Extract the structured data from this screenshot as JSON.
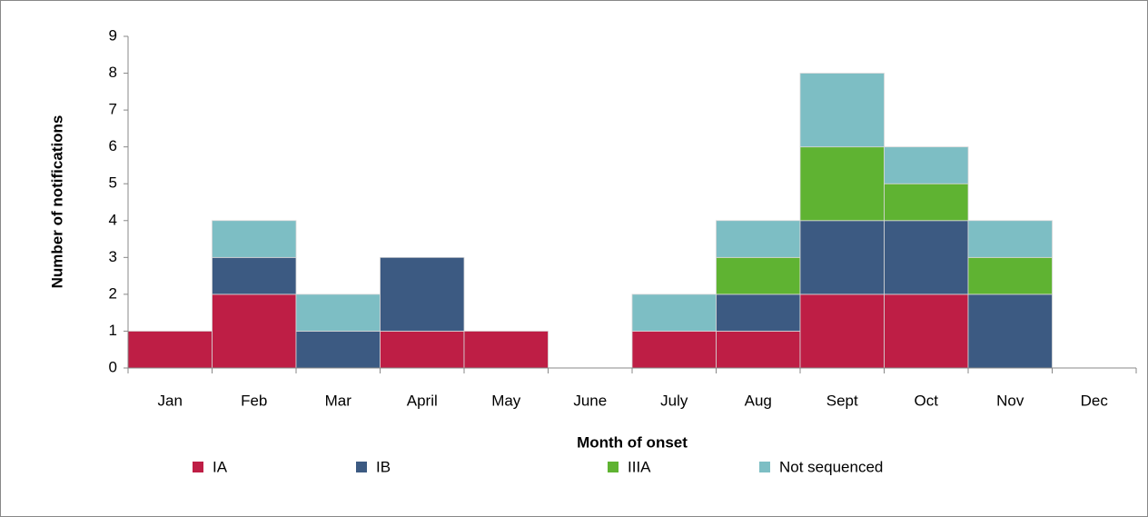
{
  "chart_data": {
    "type": "stacked_bar",
    "categories": [
      "Jan",
      "Feb",
      "Mar",
      "April",
      "May",
      "June",
      "July",
      "Aug",
      "Sept",
      "Oct",
      "Nov",
      "Dec"
    ],
    "series": [
      {
        "name": "IA",
        "color": "#be1e45",
        "values": [
          1,
          2,
          0,
          1,
          1,
          0,
          1,
          1,
          2,
          2,
          0,
          0
        ]
      },
      {
        "name": "IB",
        "color": "#3c5a82",
        "values": [
          0,
          1,
          1,
          2,
          0,
          0,
          0,
          1,
          2,
          2,
          2,
          0
        ]
      },
      {
        "name": "IIIA",
        "color": "#5fb332",
        "values": [
          0,
          0,
          0,
          0,
          0,
          0,
          0,
          1,
          2,
          1,
          1,
          0
        ]
      },
      {
        "name": "Not sequenced",
        "color": "#7dbec4",
        "values": [
          0,
          1,
          1,
          0,
          0,
          0,
          1,
          1,
          2,
          1,
          1,
          0
        ]
      }
    ],
    "x_label": "Month of onset",
    "y_label": "Number of notifications",
    "ylim": [
      0,
      9
    ],
    "yticks": [
      0,
      1,
      2,
      3,
      4,
      5,
      6,
      7,
      8,
      9
    ],
    "grid": false,
    "legend": "bottom"
  }
}
